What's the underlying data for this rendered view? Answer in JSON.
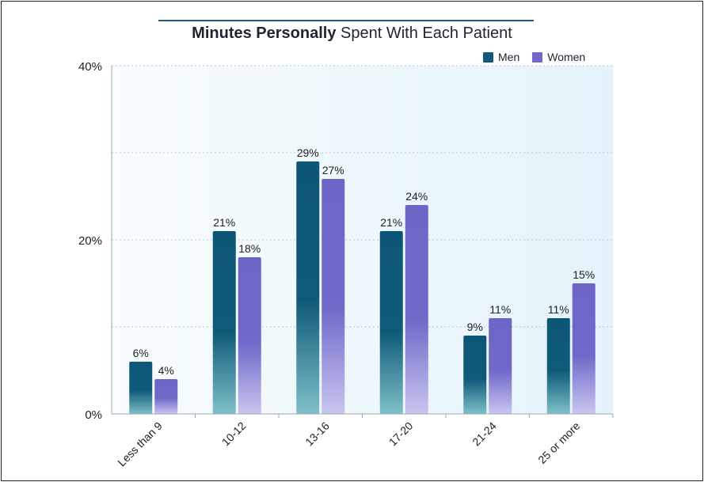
{
  "title": {
    "bold": "Minutes Personally",
    "rest": "Spent With Each Patient"
  },
  "legend": [
    {
      "label": "Men",
      "color": "#0f5a78"
    },
    {
      "label": "Women",
      "color": "#7069c9"
    }
  ],
  "chart_data": {
    "type": "bar",
    "title": "Minutes Personally Spent With Each Patient",
    "categories": [
      "Less than 9",
      "10-12",
      "13-16",
      "17-20",
      "21-24",
      "25 or more"
    ],
    "series": [
      {
        "name": "Men",
        "values": [
          6,
          21,
          29,
          21,
          9,
          11
        ],
        "color": "#0f5a78"
      },
      {
        "name": "Women",
        "values": [
          4,
          18,
          27,
          24,
          11,
          15
        ],
        "color": "#7069c9"
      }
    ],
    "data_labels": {
      "Men": [
        "6%",
        "21%",
        "29%",
        "21%",
        "9%",
        "11%"
      ],
      "Women": [
        "4%",
        "18%",
        "27%",
        "24%",
        "11%",
        "15%"
      ]
    },
    "yticks": [
      "0%",
      "20%",
      "40%"
    ],
    "ylim": [
      0,
      40
    ],
    "grid": true,
    "legend_position": "top-right"
  }
}
